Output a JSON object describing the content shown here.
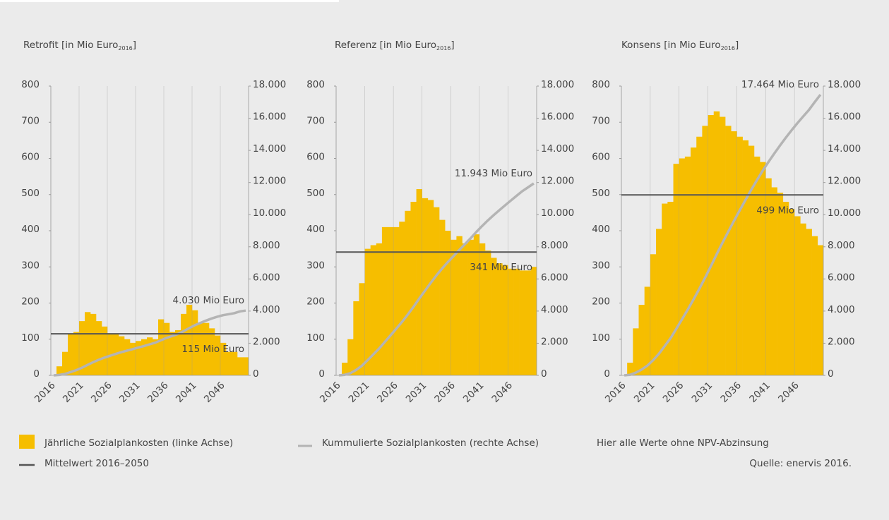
{
  "chart_data": [
    {
      "type": "bar_line",
      "title": [
        "Retrofit [in Mio Euro",
        "2016",
        "]"
      ],
      "categories": [
        "2016",
        null,
        null,
        null,
        null,
        "2021",
        null,
        null,
        null,
        null,
        "2026",
        null,
        null,
        null,
        null,
        "2031",
        null,
        null,
        null,
        null,
        "2036",
        null,
        null,
        null,
        null,
        "2041",
        null,
        null,
        null,
        null,
        "2046",
        null,
        null,
        null,
        null
      ],
      "bars": {
        "color": "#f6be00",
        "values": [
          0,
          25,
          65,
          115,
          120,
          150,
          175,
          170,
          150,
          135,
          115,
          115,
          108,
          100,
          90,
          95,
          100,
          105,
          100,
          155,
          145,
          120,
          125,
          170,
          195,
          180,
          145,
          145,
          130,
          110,
          90,
          65,
          65,
          50,
          50
        ]
      },
      "line": {
        "color": "#b4b4b4",
        "axis": "y2",
        "values": [
          0,
          25,
          90,
          205,
          325,
          475,
          650,
          820,
          970,
          1105,
          1220,
          1335,
          1443,
          1543,
          1633,
          1728,
          1828,
          1933,
          2033,
          2188,
          2333,
          2453,
          2578,
          2748,
          2943,
          3123,
          3268,
          3413,
          3543,
          3653,
          3743,
          3808,
          3873,
          3980,
          4030
        ]
      },
      "total_label": "4.030 Mio Euro",
      "mean": {
        "value": 115,
        "label": "115 Mio Euro",
        "color": "#555555"
      },
      "ylim": [
        0,
        800
      ],
      "yticks": [
        0,
        100,
        200,
        300,
        400,
        500,
        600,
        700,
        800
      ],
      "y2lim": [
        0,
        18000
      ],
      "y2ticks": [
        0,
        {
          "value": 2000,
          "label": "2.000"
        },
        {
          "value": 4000,
          "label": "4.000"
        },
        {
          "value": 6000,
          "label": "6.000"
        },
        {
          "value": 8000,
          "label": "8.000"
        },
        {
          "value": 10000,
          "label": "10.000"
        },
        {
          "value": 12000,
          "label": "12.000"
        },
        {
          "value": 14000,
          "label": "14.000"
        },
        {
          "value": 16000,
          "label": "16.000"
        },
        {
          "value": 18000,
          "label": "18.000"
        }
      ]
    },
    {
      "type": "bar_line",
      "title": [
        "Referenz [in Mio Euro",
        "2016",
        "]"
      ],
      "categories": [
        "2016",
        null,
        null,
        null,
        null,
        "2021",
        null,
        null,
        null,
        null,
        "2026",
        null,
        null,
        null,
        null,
        "2031",
        null,
        null,
        null,
        null,
        "2036",
        null,
        null,
        null,
        null,
        "2041",
        null,
        null,
        null,
        null,
        "2046",
        null,
        null,
        null,
        null
      ],
      "bars": {
        "color": "#f6be00",
        "values": [
          0,
          35,
          100,
          205,
          255,
          350,
          360,
          365,
          410,
          410,
          410,
          425,
          455,
          480,
          515,
          490,
          485,
          465,
          430,
          400,
          375,
          385,
          365,
          375,
          390,
          365,
          345,
          325,
          310,
          305,
          295,
          295,
          290,
          290,
          300
        ]
      },
      "line": {
        "color": "#b4b4b4",
        "axis": "y2",
        "values": [
          0,
          35,
          135,
          340,
          595,
          945,
          1305,
          1670,
          2080,
          2490,
          2900,
          3325,
          3780,
          4260,
          4775,
          5265,
          5750,
          6215,
          6645,
          7045,
          7420,
          7805,
          8170,
          8545,
          8935,
          9300,
          9645,
          9970,
          10280,
          10585,
          10880,
          11175,
          11465,
          11700,
          11943
        ]
      },
      "total_label": "11.943 Mio Euro",
      "mean": {
        "value": 341,
        "label": "341 Mio Euro",
        "color": "#555555"
      },
      "ylim": [
        0,
        800
      ],
      "yticks": [
        0,
        100,
        200,
        300,
        400,
        500,
        600,
        700,
        800
      ],
      "y2lim": [
        0,
        18000
      ],
      "y2ticks": [
        0,
        {
          "value": 2000,
          "label": "2.000"
        },
        {
          "value": 4000,
          "label": "4.000"
        },
        {
          "value": 6000,
          "label": "6.000"
        },
        {
          "value": 8000,
          "label": "8.000"
        },
        {
          "value": 10000,
          "label": "10.000"
        },
        {
          "value": 12000,
          "label": "12.000"
        },
        {
          "value": 14000,
          "label": "14.000"
        },
        {
          "value": 16000,
          "label": "16.000"
        },
        {
          "value": 18000,
          "label": "18.000"
        }
      ]
    },
    {
      "type": "bar_line",
      "title": [
        "Konsens [in Mio Euro",
        "2016",
        "]"
      ],
      "categories": [
        "2016",
        null,
        null,
        null,
        null,
        "2021",
        null,
        null,
        null,
        null,
        "2026",
        null,
        null,
        null,
        null,
        "2031",
        null,
        null,
        null,
        null,
        "2036",
        null,
        null,
        null,
        null,
        "2041",
        null,
        null,
        null,
        null,
        "2046",
        null,
        null,
        null,
        null
      ],
      "bars": {
        "color": "#f6be00",
        "values": [
          0,
          35,
          130,
          195,
          245,
          335,
          405,
          475,
          480,
          585,
          600,
          605,
          630,
          660,
          690,
          720,
          730,
          715,
          690,
          675,
          660,
          650,
          635,
          605,
          590,
          545,
          520,
          505,
          480,
          460,
          440,
          420,
          405,
          385,
          360
        ]
      },
      "line": {
        "color": "#b4b4b4",
        "axis": "y2",
        "values": [
          0,
          35,
          165,
          360,
          605,
          940,
          1345,
          1820,
          2300,
          2885,
          3485,
          4090,
          4720,
          5380,
          6070,
          6790,
          7520,
          8235,
          8925,
          9600,
          10260,
          10910,
          11545,
          12150,
          12740,
          13285,
          13805,
          14310,
          14790,
          15250,
          15690,
          16110,
          16515,
          17000,
          17464
        ]
      },
      "total_label": "17.464 Mio Euro",
      "mean": {
        "value": 499,
        "label": "499 Mio Euro",
        "color": "#555555"
      },
      "ylim": [
        0,
        800
      ],
      "yticks": [
        0,
        100,
        200,
        300,
        400,
        500,
        600,
        700,
        800
      ],
      "y2lim": [
        0,
        18000
      ],
      "y2ticks": [
        0,
        {
          "value": 2000,
          "label": "2.000"
        },
        {
          "value": 4000,
          "label": "4.000"
        },
        {
          "value": 6000,
          "label": "6.000"
        },
        {
          "value": 8000,
          "label": "8.000"
        },
        {
          "value": 10000,
          "label": "10.000"
        },
        {
          "value": 12000,
          "label": "12.000"
        },
        {
          "value": 14000,
          "label": "14.000"
        },
        {
          "value": 16000,
          "label": "16.000"
        },
        {
          "value": 18000,
          "label": "18.000"
        }
      ]
    }
  ],
  "legend": {
    "bars": "Jährliche Sozialplankosten (linke Achse)",
    "line": "Kummulierte Sozialplankosten (rechte Achse)",
    "mean": "Mittelwert 2016–2050"
  },
  "note": "Hier alle Werte ohne NPV-Abzinsung",
  "source": "Quelle: enervis 2016."
}
